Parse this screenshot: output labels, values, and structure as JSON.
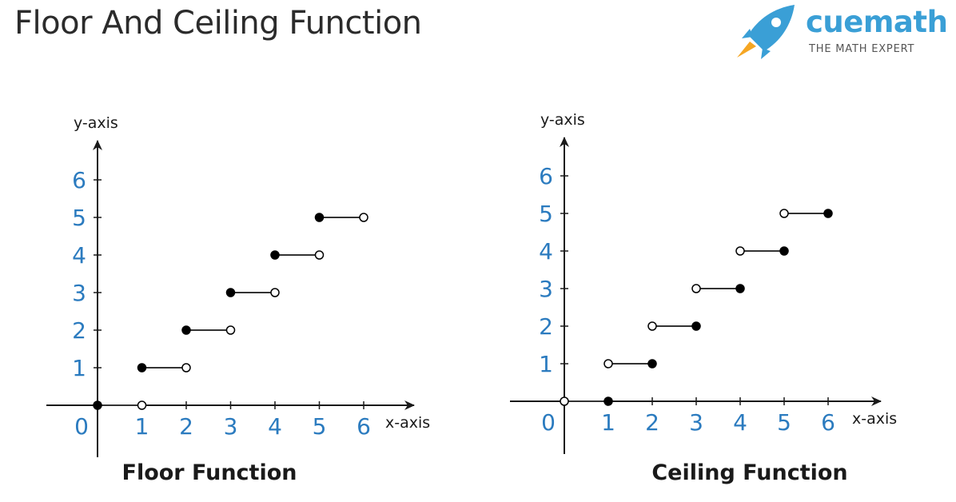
{
  "page": {
    "title": "Floor And Ceiling Function"
  },
  "brand": {
    "name": "cuemath",
    "tagline": "THE MATH EXPERT",
    "icon": "rocket-icon",
    "color": "#3a9fd6",
    "accent": "#f5a623"
  },
  "colors": {
    "tick_labels": "#2b7bbf",
    "lines": "#1a1a1a"
  },
  "chart_data": [
    {
      "type": "line",
      "title": "Floor Function",
      "xlabel": "x-axis",
      "ylabel": "y-axis",
      "origin_label": "0",
      "x_ticks": [
        "1",
        "2",
        "3",
        "4",
        "5",
        "6"
      ],
      "y_ticks": [
        "1",
        "2",
        "3",
        "4",
        "5",
        "6"
      ],
      "xlim": [
        0,
        6
      ],
      "ylim": [
        0,
        6
      ],
      "segments": [
        {
          "x0": 0,
          "x1": 1,
          "y": 0,
          "start": "closed",
          "end": "open"
        },
        {
          "x0": 1,
          "x1": 2,
          "y": 1,
          "start": "closed",
          "end": "open"
        },
        {
          "x0": 2,
          "x1": 3,
          "y": 2,
          "start": "closed",
          "end": "open"
        },
        {
          "x0": 3,
          "x1": 4,
          "y": 3,
          "start": "closed",
          "end": "open"
        },
        {
          "x0": 4,
          "x1": 5,
          "y": 4,
          "start": "closed",
          "end": "open"
        },
        {
          "x0": 5,
          "x1": 6,
          "y": 5,
          "start": "closed",
          "end": "open"
        }
      ]
    },
    {
      "type": "line",
      "title": "Ceiling Function",
      "xlabel": "x-axis",
      "ylabel": "y-axis",
      "origin_label": "0",
      "x_ticks": [
        "1",
        "2",
        "3",
        "4",
        "5",
        "6"
      ],
      "y_ticks": [
        "1",
        "2",
        "3",
        "4",
        "5",
        "6"
      ],
      "xlim": [
        0,
        6
      ],
      "ylim": [
        0,
        6
      ],
      "segments": [
        {
          "x0": 0,
          "x1": 1,
          "y": 0,
          "start": "open",
          "end": "closed"
        },
        {
          "x0": 1,
          "x1": 2,
          "y": 1,
          "start": "open",
          "end": "closed"
        },
        {
          "x0": 2,
          "x1": 3,
          "y": 2,
          "start": "open",
          "end": "closed"
        },
        {
          "x0": 3,
          "x1": 4,
          "y": 3,
          "start": "open",
          "end": "closed"
        },
        {
          "x0": 4,
          "x1": 5,
          "y": 4,
          "start": "open",
          "end": "closed"
        },
        {
          "x0": 5,
          "x1": 6,
          "y": 5,
          "start": "open",
          "end": "closed"
        }
      ]
    }
  ]
}
